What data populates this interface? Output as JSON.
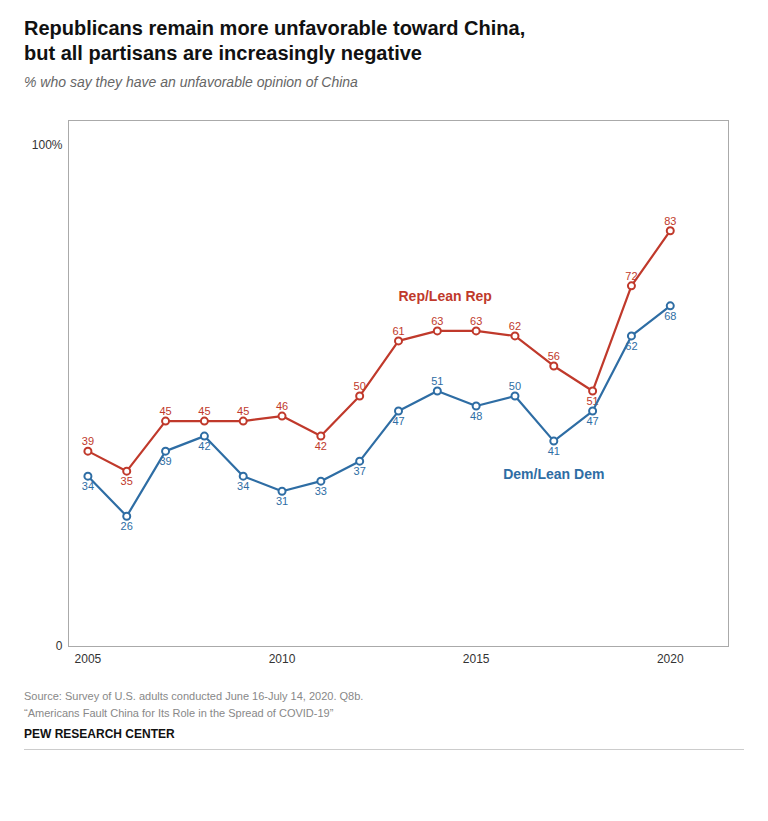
{
  "chart_data": {
    "type": "line",
    "title": "Republicans remain more unfavorable toward China,\nbut all partisans are increasingly negative",
    "subtitle": "% who say they have an unfavorable opinion of China",
    "source": "Source: Survey of U.S. adults conducted June 16-July 14, 2020. Q8b.\n“Americans Fault China for Its Role in the Spread of COVID-19”",
    "credit": "PEW RESEARCH CENTER",
    "x": [
      2005,
      2006,
      2007,
      2008,
      2009,
      2010,
      2011,
      2012,
      2013,
      2014,
      2015,
      2016,
      2017,
      2018,
      2019,
      2020
    ],
    "series": [
      {
        "name": "Rep/Lean Rep",
        "color": "#C0392B",
        "values": [
          39,
          35,
          45,
          45,
          45,
          46,
          42,
          50,
          61,
          63,
          63,
          62,
          56,
          51,
          72,
          83
        ]
      },
      {
        "name": "Dem/Lean Dem",
        "color": "#2E6DA4",
        "values": [
          34,
          26,
          39,
          42,
          34,
          31,
          33,
          37,
          47,
          51,
          48,
          50,
          41,
          47,
          62,
          68
        ]
      }
    ],
    "xlim": [
      2004.5,
      2021.5
    ],
    "xticks": [
      2005,
      2010,
      2015,
      2020
    ],
    "ylim": [
      0,
      105
    ],
    "yticks": [
      0,
      {
        "value": 100,
        "label": "100%"
      }
    ],
    "grid": false,
    "marker": "circle",
    "data_labels": true
  }
}
